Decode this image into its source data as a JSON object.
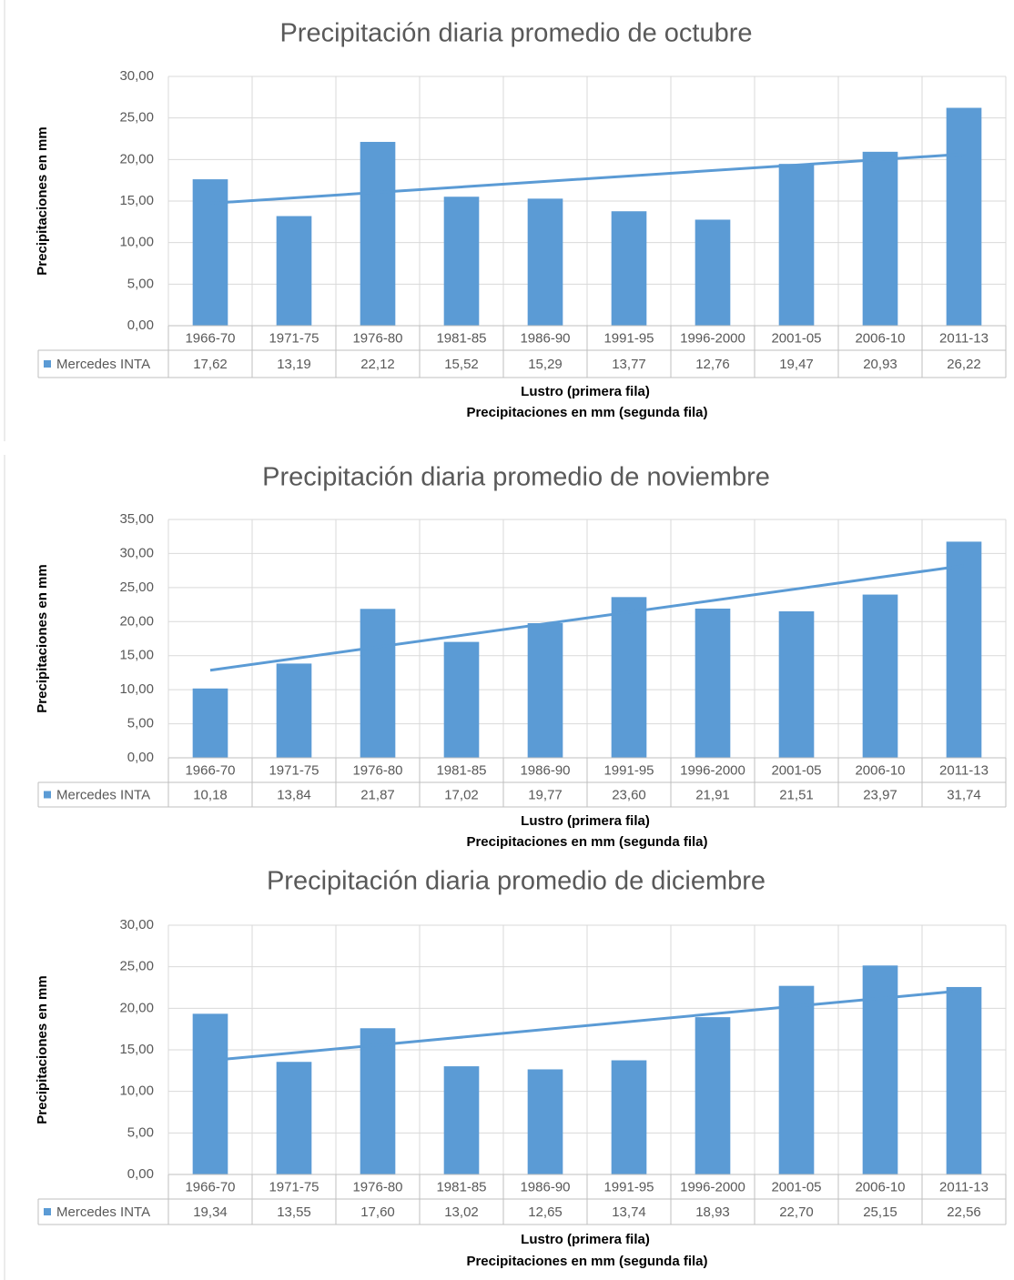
{
  "chart_data": [
    {
      "type": "bar",
      "title": "Precipitación diaria promedio de octubre",
      "x_label": "Lustro (primera fila)",
      "x_label_2": "Precipitaciones en mm (segunda fila)",
      "y_label": "Precipitaciones en mm",
      "categories": [
        "1966-70",
        "1971-75",
        "1976-80",
        "1981-85",
        "1986-90",
        "1991-95",
        "1996-2000",
        "2001-05",
        "2006-10",
        "2011-13"
      ],
      "series": [
        {
          "name": "Mercedes INTA",
          "color": "#5b9bd5",
          "values": [
            17.62,
            13.19,
            22.12,
            15.52,
            15.29,
            13.77,
            12.76,
            19.47,
            20.93,
            26.22
          ],
          "value_labels": [
            "17,62",
            "13,19",
            "22,12",
            "15,52",
            "15,29",
            "13,77",
            "12,76",
            "19,47",
            "20,93",
            "26,22"
          ]
        }
      ],
      "ylim": [
        0,
        30
      ],
      "yticks": [
        {
          "value": 0,
          "label": "0,00"
        },
        {
          "value": 5,
          "label": "5,00"
        },
        {
          "value": 10,
          "label": "10,00"
        },
        {
          "value": 15,
          "label": "15,00"
        },
        {
          "value": 20,
          "label": "20,00"
        },
        {
          "value": 25,
          "label": "25,00"
        },
        {
          "value": 30,
          "label": "30,00"
        }
      ],
      "grid": true,
      "trendline": "linear",
      "data_table": true
    },
    {
      "type": "bar",
      "title": "Precipitación diaria promedio de noviembre",
      "x_label": "Lustro (primera fila)",
      "x_label_2": "Precipitaciones en mm (segunda fila)",
      "y_label": "Precipitaciones en mm",
      "categories": [
        "1966-70",
        "1971-75",
        "1976-80",
        "1981-85",
        "1986-90",
        "1991-95",
        "1996-2000",
        "2001-05",
        "2006-10",
        "2011-13"
      ],
      "series": [
        {
          "name": "Mercedes INTA",
          "color": "#5b9bd5",
          "values": [
            10.18,
            13.84,
            21.87,
            17.02,
            19.77,
            23.6,
            21.91,
            21.51,
            23.97,
            31.74
          ],
          "value_labels": [
            "10,18",
            "13,84",
            "21,87",
            "17,02",
            "19,77",
            "23,60",
            "21,91",
            "21,51",
            "23,97",
            "31,74"
          ]
        }
      ],
      "ylim": [
        0,
        35
      ],
      "yticks": [
        {
          "value": 0,
          "label": "0,00"
        },
        {
          "value": 5,
          "label": "5,00"
        },
        {
          "value": 10,
          "label": "10,00"
        },
        {
          "value": 15,
          "label": "15,00"
        },
        {
          "value": 20,
          "label": "20,00"
        },
        {
          "value": 25,
          "label": "25,00"
        },
        {
          "value": 30,
          "label": "30,00"
        },
        {
          "value": 35,
          "label": "35,00"
        }
      ],
      "grid": true,
      "trendline": "linear",
      "data_table": true
    },
    {
      "type": "bar",
      "title": "Precipitación diaria promedio de diciembre",
      "x_label": "Lustro (primera fila)",
      "x_label_2": "Precipitaciones en mm (segunda fila)",
      "y_label": "Precipitaciones en mm",
      "categories": [
        "1966-70",
        "1971-75",
        "1976-80",
        "1981-85",
        "1986-90",
        "1991-95",
        "1996-2000",
        "2001-05",
        "2006-10",
        "2011-13"
      ],
      "series": [
        {
          "name": "Mercedes INTA",
          "color": "#5b9bd5",
          "values": [
            19.34,
            13.55,
            17.6,
            13.02,
            12.65,
            13.74,
            18.93,
            22.7,
            25.15,
            22.56
          ],
          "value_labels": [
            "19,34",
            "13,55",
            "17,60",
            "13,02",
            "12,65",
            "13,74",
            "18,93",
            "22,70",
            "25,15",
            "22,56"
          ]
        }
      ],
      "ylim": [
        0,
        30
      ],
      "yticks": [
        {
          "value": 0,
          "label": "0,00"
        },
        {
          "value": 5,
          "label": "5,00"
        },
        {
          "value": 10,
          "label": "10,00"
        },
        {
          "value": 15,
          "label": "15,00"
        },
        {
          "value": 20,
          "label": "20,00"
        },
        {
          "value": 25,
          "label": "25,00"
        },
        {
          "value": 30,
          "label": "30,00"
        }
      ],
      "grid": true,
      "trendline": "linear",
      "data_table": true
    }
  ]
}
